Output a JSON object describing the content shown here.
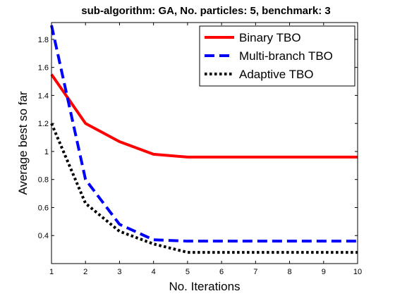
{
  "chart_data": {
    "type": "line",
    "title": "sub-algorithm: GA, No. particles: 5, benchmark: 3",
    "xlabel": "No. Iterations",
    "ylabel": "Average best so far",
    "xlim": [
      1,
      10
    ],
    "ylim": [
      0.2,
      1.92
    ],
    "xticks": [
      1,
      2,
      3,
      4,
      5,
      6,
      7,
      8,
      9,
      10
    ],
    "yticks": [
      0.4,
      0.6,
      0.8,
      1,
      1.2,
      1.4,
      1.6,
      1.8
    ],
    "xtick_labels": [
      "1",
      "2",
      "3",
      "4",
      "5",
      "6",
      "7",
      "8",
      "9",
      "10"
    ],
    "ytick_labels": [
      "0.4",
      "0.6",
      "0.8",
      "1",
      "1.2",
      "1.4",
      "1.6",
      "1.8"
    ],
    "grid": false,
    "legend_position": "top-right",
    "x": [
      1,
      2,
      3,
      4,
      5,
      6,
      7,
      8,
      9,
      10
    ],
    "series": [
      {
        "name": "Binary TBO",
        "values": [
          1.55,
          1.2,
          1.07,
          0.98,
          0.96,
          0.96,
          0.96,
          0.96,
          0.96,
          0.96
        ],
        "color": "#ff0000",
        "style": "solid"
      },
      {
        "name": "Multi-branch TBO",
        "values": [
          1.9,
          0.8,
          0.48,
          0.37,
          0.36,
          0.36,
          0.36,
          0.36,
          0.36,
          0.36
        ],
        "color": "#0000ff",
        "style": "dashed"
      },
      {
        "name": "Adaptive TBO",
        "values": [
          1.2,
          0.63,
          0.43,
          0.34,
          0.28,
          0.28,
          0.28,
          0.28,
          0.28,
          0.28
        ],
        "color": "#000000",
        "style": "dotted"
      }
    ]
  }
}
